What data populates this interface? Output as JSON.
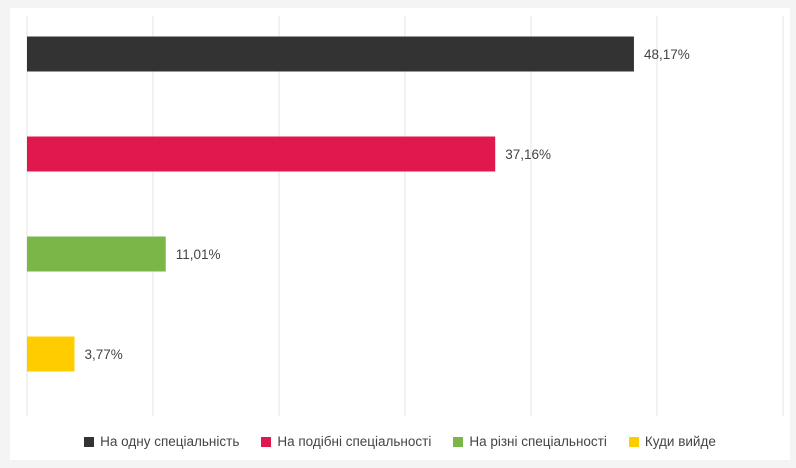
{
  "chart_data": {
    "type": "bar",
    "orientation": "horizontal",
    "title": "",
    "xlabel": "",
    "ylabel": "",
    "xlim": [
      0,
      60
    ],
    "grid": true,
    "legend_position": "bottom",
    "series": [
      {
        "name": "На одну спеціальність",
        "value": 48.17,
        "label": "48,17%",
        "color": "#333333"
      },
      {
        "name": "На подібні спеціальності",
        "value": 37.16,
        "label": "37,16%",
        "color": "#e0184d"
      },
      {
        "name": "На різні спеціальності",
        "value": 11.01,
        "label": "11,01%",
        "color": "#7ab648"
      },
      {
        "name": "Куди вийде",
        "value": 3.77,
        "label": "3,77%",
        "color": "#ffcc00"
      }
    ]
  }
}
